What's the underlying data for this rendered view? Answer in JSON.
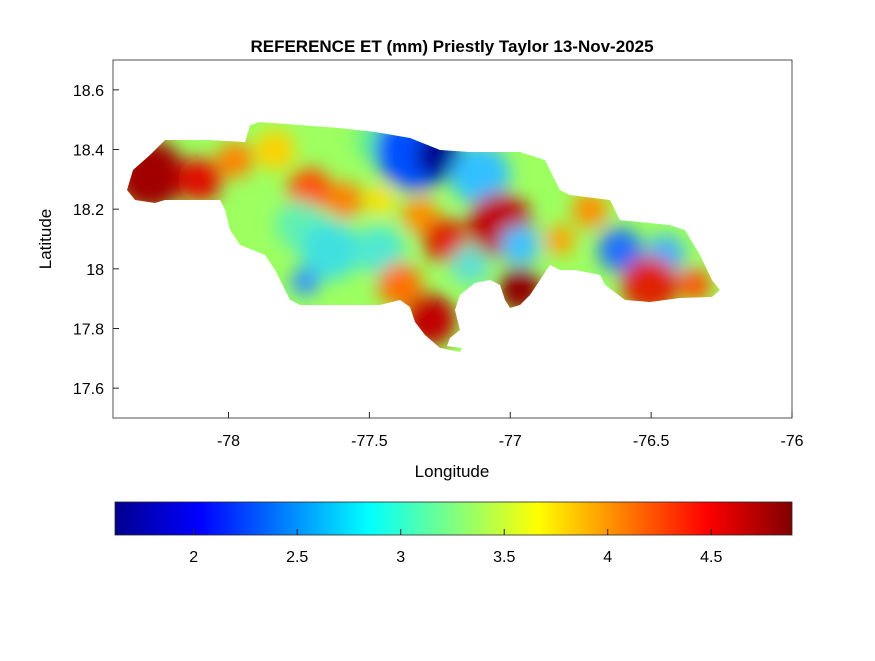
{
  "chart_data": {
    "type": "heatmap",
    "style": "filled contour map",
    "title": "REFERENCE ET (mm) Priestly Taylor 13-Nov-2025",
    "xlabel": "Longitude",
    "ylabel": "Latitude",
    "xlim": [
      -78.41,
      -76
    ],
    "ylim": [
      17.5,
      18.7
    ],
    "xticks": [
      -78,
      -77.5,
      -77,
      -76.5,
      -76
    ],
    "xtick_labels": [
      "-78",
      "-77.5",
      "-77",
      "-76.5",
      "-76"
    ],
    "yticks": [
      17.6,
      17.8,
      18,
      18.2,
      18.4,
      18.6
    ],
    "ytick_labels": [
      "17.6",
      "17.8",
      "18",
      "18.2",
      "18.4",
      "18.6"
    ],
    "grid": false,
    "colorbar": {
      "location": "bottom",
      "colormap": "jet",
      "clim": [
        1.62,
        4.89
      ],
      "ticks": [
        2,
        2.5,
        3,
        3.5,
        4,
        4.5
      ],
      "tick_labels": [
        "2",
        "2.5",
        "3",
        "3.5",
        "4",
        "4.5"
      ]
    },
    "jet_colors": [
      "#00008f",
      "#0000ff",
      "#00ffff",
      "#ffff00",
      "#ff0000",
      "#800000"
    ]
  }
}
